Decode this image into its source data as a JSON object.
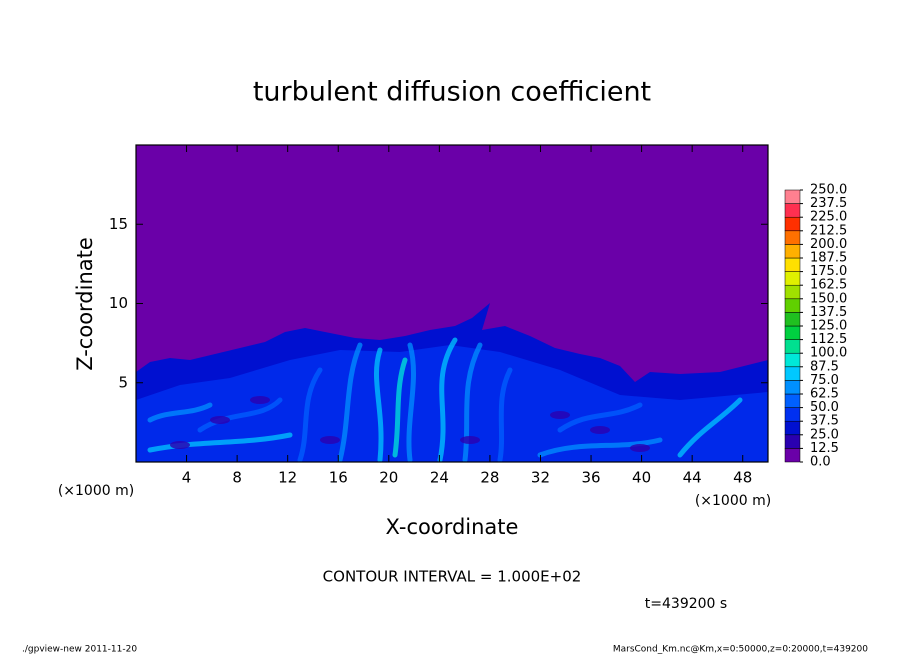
{
  "chart_data": {
    "type": "contour",
    "title": "turbulent diffusion coefficient",
    "xlabel": "X-coordinate",
    "ylabel": "Z-coordinate",
    "x_unit": "(×1000 m)",
    "xlim": [
      0,
      50
    ],
    "xticks": [
      4,
      8,
      12,
      16,
      20,
      24,
      28,
      32,
      36,
      40,
      44,
      48
    ],
    "ylim": [
      0,
      20
    ],
    "yticks": [
      5,
      10,
      15
    ],
    "colorbar": {
      "lim": [
        0,
        250
      ],
      "ticks": [
        {
          "value": 0,
          "label": "0.0"
        },
        {
          "value": 12.5,
          "label": "12.5"
        },
        {
          "value": 25,
          "label": "25.0"
        },
        {
          "value": 37.5,
          "label": "37.5"
        },
        {
          "value": 50,
          "label": "50.0"
        },
        {
          "value": 62.5,
          "label": "62.5"
        },
        {
          "value": 75,
          "label": "75.0"
        },
        {
          "value": 87.5,
          "label": "87.5"
        },
        {
          "value": 100,
          "label": "100.0"
        },
        {
          "value": 112.5,
          "label": "112.5"
        },
        {
          "value": 125,
          "label": "125.0"
        },
        {
          "value": 137.5,
          "label": "137.5"
        },
        {
          "value": 150,
          "label": "150.0"
        },
        {
          "value": 162.5,
          "label": "162.5"
        },
        {
          "value": 175,
          "label": "175.0"
        },
        {
          "value": 187.5,
          "label": "187.5"
        },
        {
          "value": 200,
          "label": "200.0"
        },
        {
          "value": 212.5,
          "label": "212.5"
        },
        {
          "value": 225,
          "label": "225.0"
        },
        {
          "value": 237.5,
          "label": "237.5"
        },
        {
          "value": 250,
          "label": "250.0"
        }
      ],
      "colors": [
        "#6a00a8",
        "#2a00b0",
        "#0010d0",
        "#0030f0",
        "#0060ff",
        "#0090ff",
        "#00c8ff",
        "#00e8d8",
        "#00e090",
        "#00d040",
        "#20c020",
        "#60d000",
        "#a0e000",
        "#e0f000",
        "#ffe000",
        "#ffb000",
        "#ff7000",
        "#ff3000",
        "#ff3050",
        "#ff8090"
      ]
    },
    "contour_interval": "CONTOUR INTERVAL = 1.000E+02",
    "time": "t=439200 s",
    "footer_left": "./gpview-new  2011-11-20",
    "footer_right": "MarsCond_Km.nc@Km,x=0:50000,z=0:20000,t=439200"
  }
}
